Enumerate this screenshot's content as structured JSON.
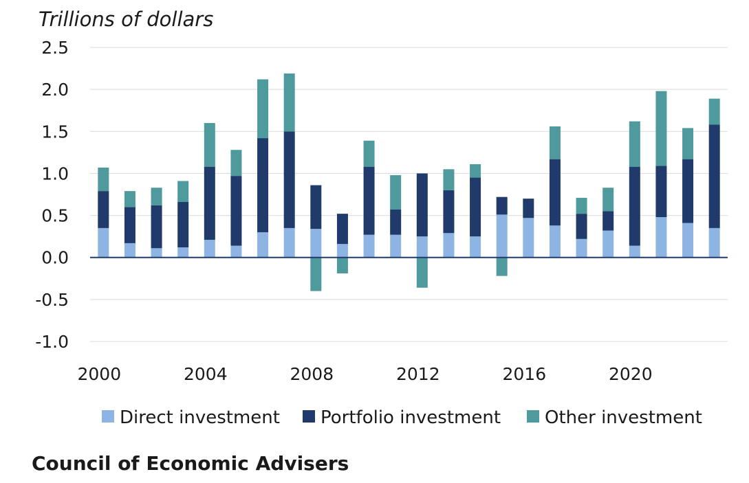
{
  "chart_data": {
    "type": "bar",
    "stacked": true,
    "ylabel": "Trillions of dollars",
    "ylim": [
      -1.0,
      2.5
    ],
    "yticks": [
      2.5,
      2.0,
      1.5,
      1.0,
      0.5,
      0.0,
      -0.5,
      -1.0
    ],
    "ytick_labels": [
      "2.5",
      "2.0",
      "1.5",
      "1.0",
      "0.5",
      "0.0",
      "-0.5",
      "-1.0"
    ],
    "x": [
      2000,
      2001,
      2002,
      2003,
      2004,
      2005,
      2006,
      2007,
      2008,
      2009,
      2010,
      2011,
      2012,
      2013,
      2014,
      2015,
      2016,
      2017,
      2018,
      2019,
      2020,
      2021,
      2022,
      2023
    ],
    "xtick_values": [
      2000,
      2004,
      2008,
      2012,
      2016,
      2020
    ],
    "xtick_labels": [
      "2000",
      "2004",
      "2008",
      "2012",
      "2016",
      "2020"
    ],
    "grid": true,
    "legend_position": "bottom",
    "series": [
      {
        "name": "Direct investment",
        "color": "#8db4e2",
        "values": [
          0.35,
          0.17,
          0.11,
          0.12,
          0.21,
          0.14,
          0.3,
          0.35,
          0.34,
          0.16,
          0.27,
          0.27,
          0.25,
          0.29,
          0.25,
          0.51,
          0.47,
          0.38,
          0.22,
          0.32,
          0.14,
          0.48,
          0.41,
          0.35
        ]
      },
      {
        "name": "Portfolio investment",
        "color": "#1f3a6b",
        "values": [
          0.44,
          0.43,
          0.51,
          0.54,
          0.87,
          0.83,
          1.12,
          1.15,
          0.52,
          0.36,
          0.81,
          0.3,
          0.75,
          0.51,
          0.7,
          0.21,
          0.23,
          0.79,
          0.3,
          0.23,
          0.94,
          0.61,
          0.76,
          1.23
        ]
      },
      {
        "name": "Other investment",
        "color": "#4f9a9c",
        "values": [
          0.28,
          0.19,
          0.21,
          0.25,
          0.52,
          0.31,
          0.7,
          0.69,
          -0.4,
          -0.19,
          0.31,
          0.41,
          -0.36,
          0.25,
          0.16,
          -0.22,
          0.0,
          0.39,
          0.19,
          0.28,
          0.54,
          0.89,
          0.37,
          0.31
        ]
      }
    ]
  },
  "source": "Council of Economic Advisers"
}
